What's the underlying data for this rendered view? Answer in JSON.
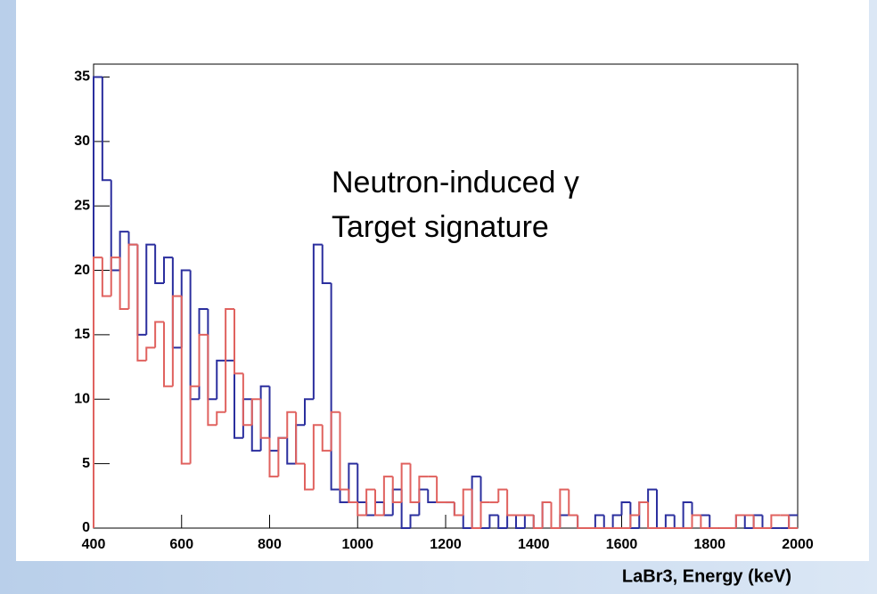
{
  "chart_data": {
    "type": "histogram",
    "xlabel": "LaBr3, Energy (keV)",
    "annotations": [
      "Neutron-induced γ",
      "Target signature"
    ],
    "bins": [
      400,
      420,
      440,
      460,
      480,
      500,
      520,
      540,
      560,
      580,
      600,
      620,
      640,
      660,
      680,
      700,
      720,
      740,
      760,
      780,
      800,
      820,
      840,
      860,
      880,
      900,
      920,
      940,
      960,
      980,
      1000,
      1020,
      1040,
      1060,
      1080,
      1100,
      1120,
      1140,
      1160,
      1180,
      1200,
      1220,
      1240,
      1260,
      1280,
      1300,
      1320,
      1340,
      1360,
      1380,
      1400,
      1420,
      1440,
      1460,
      1480,
      1500,
      1520,
      1540,
      1560,
      1580,
      1600,
      1620,
      1640,
      1660,
      1680,
      1700,
      1720,
      1740,
      1760,
      1780,
      1800,
      1820,
      1840,
      1860,
      1880,
      1900,
      1920,
      1940,
      1960,
      1980,
      2000
    ],
    "series": [
      {
        "color": "#2b2f9e",
        "values": [
          35,
          27,
          20,
          23,
          22,
          15,
          22,
          19,
          21,
          14,
          20,
          10,
          17,
          10,
          13,
          13,
          7,
          10,
          6,
          11,
          6,
          7,
          5,
          8,
          10,
          22,
          19,
          3,
          2,
          5,
          2,
          1,
          2,
          1,
          3,
          0,
          1,
          3,
          2,
          2,
          2,
          1,
          0,
          4,
          0,
          1,
          0,
          1,
          0,
          1,
          0,
          2,
          0,
          1,
          1,
          0,
          0,
          1,
          0,
          1,
          2,
          0,
          2,
          3,
          0,
          1,
          0,
          2,
          1,
          1,
          0,
          0,
          0,
          1,
          0,
          1,
          0,
          0,
          0,
          1
        ]
      },
      {
        "color": "#e0625f",
        "values": [
          21,
          18,
          21,
          17,
          22,
          13,
          14,
          16,
          11,
          18,
          5,
          11,
          15,
          8,
          9,
          17,
          12,
          8,
          10,
          7,
          4,
          7,
          9,
          5,
          3,
          8,
          6,
          9,
          3,
          2,
          1,
          3,
          1,
          4,
          2,
          5,
          2,
          4,
          4,
          2,
          2,
          1,
          3,
          0,
          2,
          2,
          3,
          1,
          1,
          1,
          0,
          2,
          0,
          3,
          1,
          0,
          0,
          0,
          0,
          0,
          0,
          1,
          2,
          0,
          0,
          0,
          0,
          0,
          1,
          0,
          0,
          0,
          0,
          1,
          1,
          0,
          0,
          1,
          1,
          0
        ]
      }
    ],
    "xlim": [
      400,
      2000
    ],
    "ylim": [
      0,
      36
    ],
    "xticks": [
      400,
      600,
      800,
      1000,
      1200,
      1400,
      1600,
      1800,
      2000
    ],
    "yticks": [
      0,
      5,
      10,
      15,
      20,
      25,
      30,
      35
    ]
  }
}
